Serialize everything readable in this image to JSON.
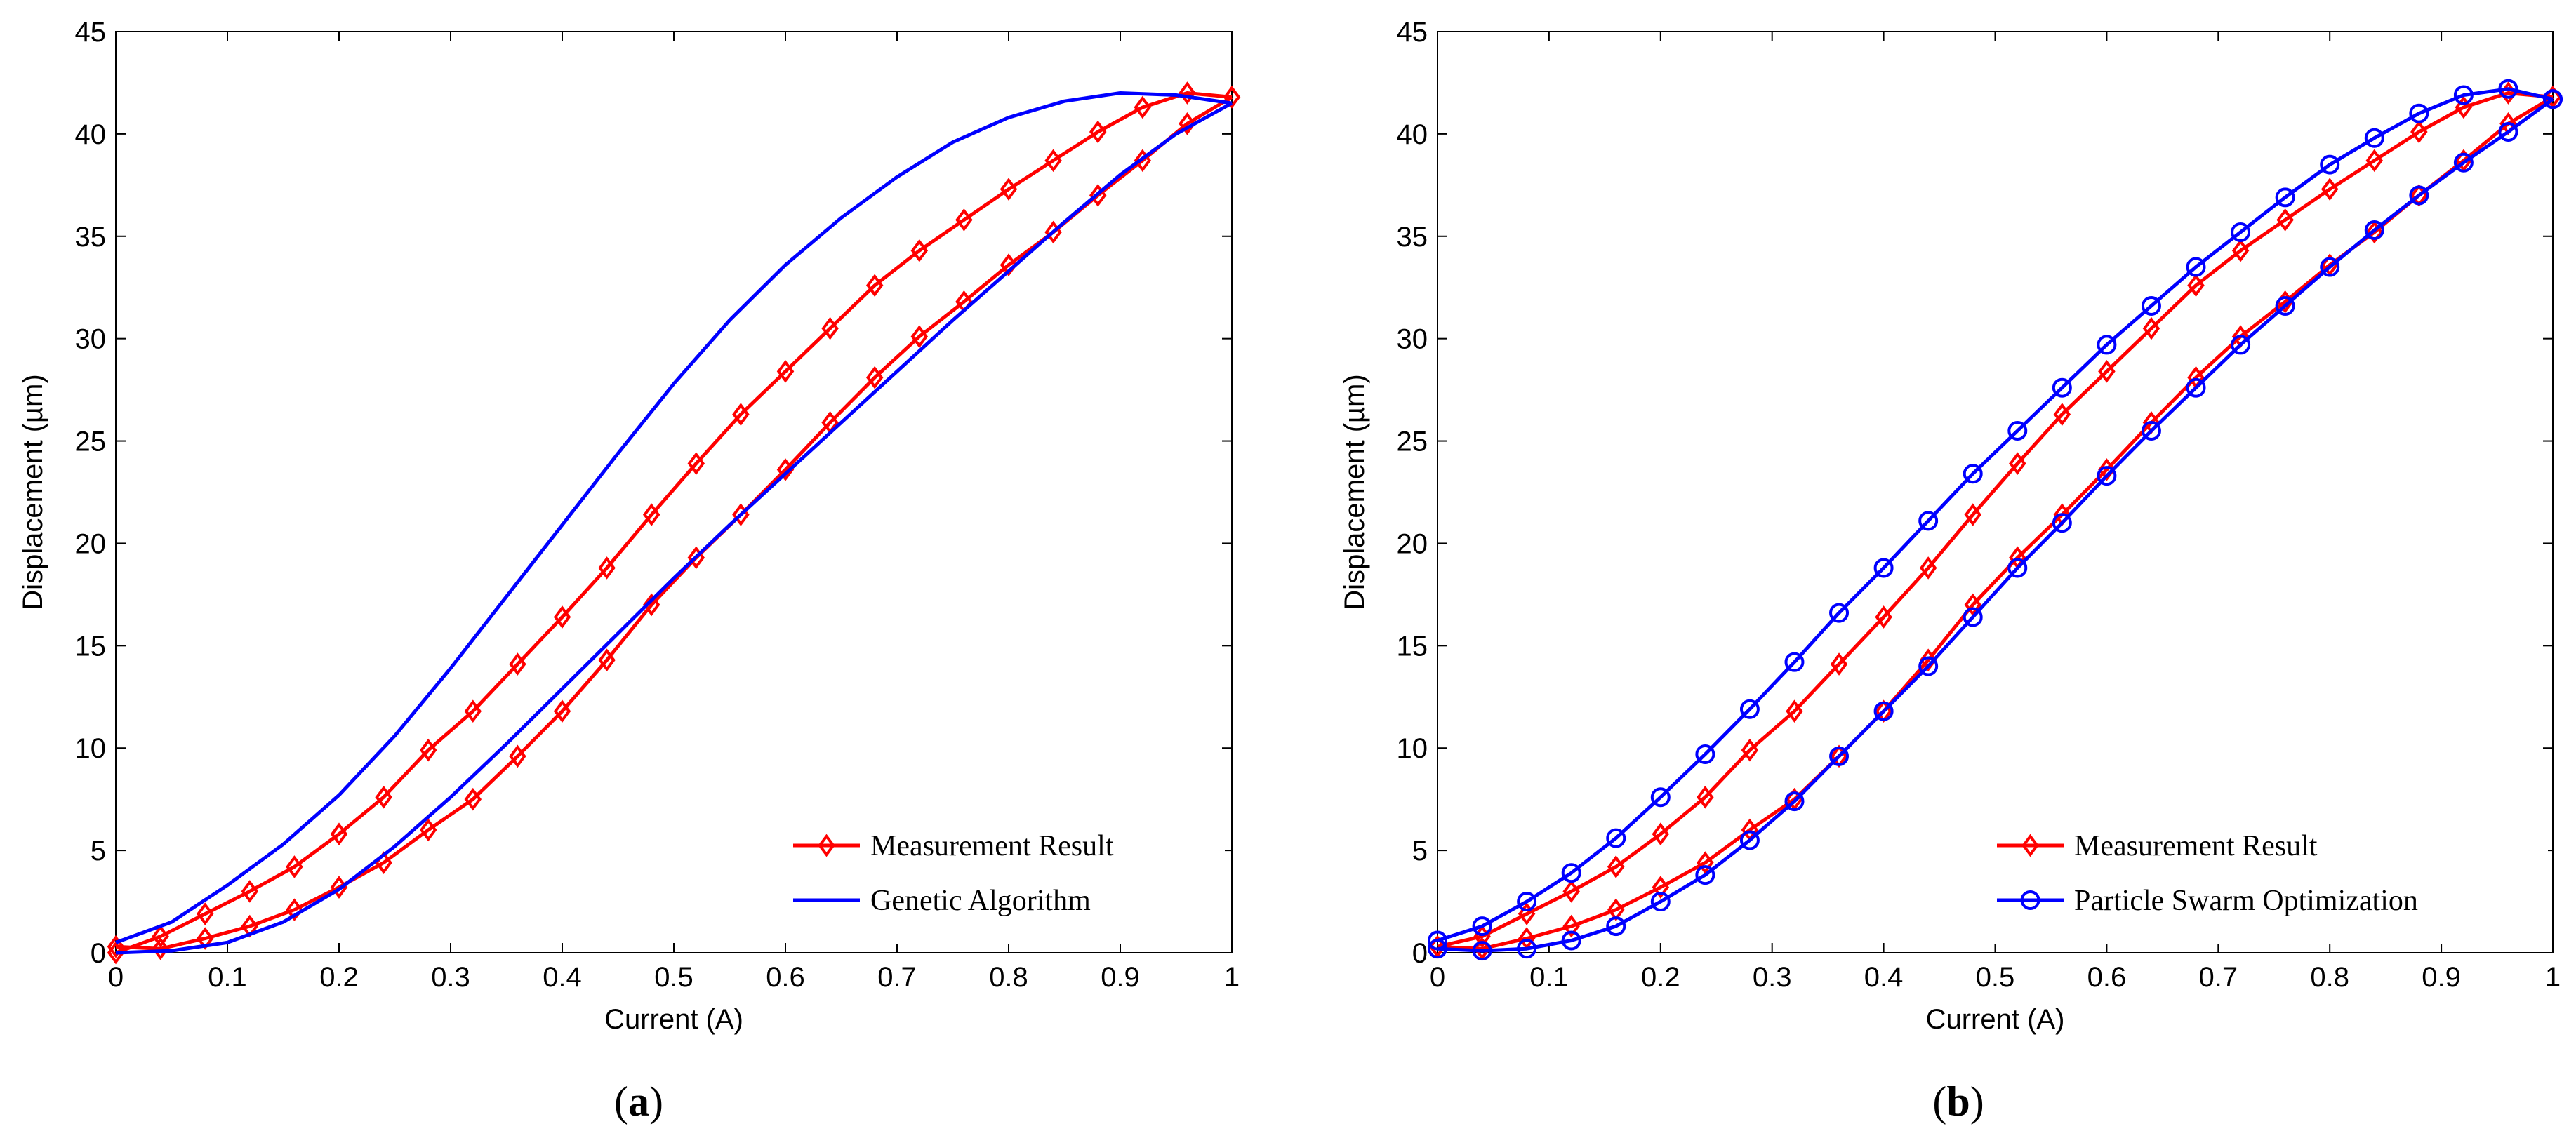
{
  "chart_data": [
    {
      "type": "line",
      "xlabel": "Current (A)",
      "ylabel": "Displacement (µm)",
      "xlim": [
        0,
        1
      ],
      "ylim": [
        0,
        45
      ],
      "xticks": [
        0,
        0.1,
        0.2,
        0.3,
        0.4,
        0.5,
        0.6,
        0.7,
        0.8,
        0.9,
        1
      ],
      "xtick_labels": [
        "0",
        "0.1",
        "0.2",
        "0.3",
        "0.4",
        "0.5",
        "0.6",
        "0.7",
        "0.8",
        "0.9",
        "1"
      ],
      "yticks": [
        0,
        5,
        10,
        15,
        20,
        25,
        30,
        35,
        40,
        45
      ],
      "ytick_labels": [
        "0",
        "5",
        "10",
        "15",
        "20",
        "25",
        "30",
        "35",
        "40",
        "45"
      ],
      "grid": false,
      "legend_position": "bottom-right",
      "panel_label": "a",
      "series": [
        {
          "name": "Measurement Result",
          "color": "#ff0000",
          "marker": "diamond",
          "up_x": [
            0,
            0.04,
            0.08,
            0.12,
            0.16,
            0.2,
            0.24,
            0.28,
            0.32,
            0.36,
            0.4,
            0.44,
            0.48,
            0.52,
            0.56,
            0.6,
            0.64,
            0.68,
            0.72,
            0.76,
            0.8,
            0.84,
            0.88,
            0.92,
            0.96,
            1
          ],
          "up_y": [
            0,
            0.8,
            1.9,
            3.0,
            4.2,
            5.8,
            7.6,
            9.9,
            11.8,
            14.1,
            16.4,
            18.8,
            21.4,
            23.9,
            26.3,
            28.4,
            30.5,
            32.6,
            34.3,
            35.8,
            37.3,
            38.7,
            40.1,
            41.3,
            42.0,
            41.8
          ],
          "down_x": [
            1,
            0.96,
            0.92,
            0.88,
            0.84,
            0.8,
            0.76,
            0.72,
            0.68,
            0.64,
            0.6,
            0.56,
            0.52,
            0.48,
            0.44,
            0.4,
            0.36,
            0.32,
            0.28,
            0.24,
            0.2,
            0.16,
            0.12,
            0.08,
            0.04,
            0
          ],
          "down_y": [
            41.8,
            40.5,
            38.7,
            37.0,
            35.2,
            33.6,
            31.8,
            30.1,
            28.1,
            25.9,
            23.6,
            21.4,
            19.3,
            17.0,
            14.3,
            11.8,
            9.6,
            7.5,
            6.0,
            4.4,
            3.2,
            2.1,
            1.3,
            0.7,
            0.2,
            0.3
          ]
        },
        {
          "name": "Genetic Algorithm",
          "color": "#0000ff",
          "marker": "none",
          "up_x": [
            0,
            0.05,
            0.1,
            0.15,
            0.2,
            0.25,
            0.3,
            0.35,
            0.4,
            0.45,
            0.5,
            0.55,
            0.6,
            0.65,
            0.7,
            0.75,
            0.8,
            0.85,
            0.9,
            0.95,
            1
          ],
          "up_y": [
            0.5,
            1.5,
            3.3,
            5.3,
            7.7,
            10.6,
            13.9,
            17.4,
            20.9,
            24.4,
            27.8,
            30.9,
            33.6,
            35.9,
            37.9,
            39.6,
            40.8,
            41.6,
            42.0,
            41.9,
            41.5
          ],
          "down_x": [
            1,
            0.95,
            0.9,
            0.85,
            0.8,
            0.75,
            0.7,
            0.65,
            0.6,
            0.55,
            0.5,
            0.45,
            0.4,
            0.35,
            0.3,
            0.25,
            0.2,
            0.15,
            0.1,
            0.05,
            0
          ],
          "down_y": [
            41.5,
            40.0,
            38.0,
            35.7,
            33.3,
            30.9,
            28.4,
            25.9,
            23.4,
            20.9,
            18.3,
            15.6,
            12.9,
            10.2,
            7.6,
            5.2,
            3.1,
            1.5,
            0.5,
            0.1,
            0.0
          ]
        }
      ]
    },
    {
      "type": "line",
      "xlabel": "Current (A)",
      "ylabel": "Displacement (µm)",
      "xlim": [
        0,
        1
      ],
      "ylim": [
        0,
        45
      ],
      "xticks": [
        0,
        0.1,
        0.2,
        0.3,
        0.4,
        0.5,
        0.6,
        0.7,
        0.8,
        0.9,
        1
      ],
      "xtick_labels": [
        "0",
        "0.1",
        "0.2",
        "0.3",
        "0.4",
        "0.5",
        "0.6",
        "0.7",
        "0.8",
        "0.9",
        "1"
      ],
      "yticks": [
        0,
        5,
        10,
        15,
        20,
        25,
        30,
        35,
        40,
        45
      ],
      "ytick_labels": [
        "0",
        "5",
        "10",
        "15",
        "20",
        "25",
        "30",
        "35",
        "40",
        "45"
      ],
      "grid": false,
      "legend_position": "bottom-right",
      "panel_label": "b",
      "series": [
        {
          "name": "Measurement Result",
          "color": "#ff0000",
          "marker": "diamond",
          "up_x": [
            0,
            0.04,
            0.08,
            0.12,
            0.16,
            0.2,
            0.24,
            0.28,
            0.32,
            0.36,
            0.4,
            0.44,
            0.48,
            0.52,
            0.56,
            0.6,
            0.64,
            0.68,
            0.72,
            0.76,
            0.8,
            0.84,
            0.88,
            0.92,
            0.96,
            1
          ],
          "up_y": [
            0.3,
            0.8,
            1.9,
            3.0,
            4.2,
            5.8,
            7.6,
            9.9,
            11.8,
            14.1,
            16.4,
            18.8,
            21.4,
            23.9,
            26.3,
            28.4,
            30.5,
            32.6,
            34.3,
            35.8,
            37.3,
            38.7,
            40.1,
            41.3,
            42.0,
            41.8
          ],
          "down_x": [
            1,
            0.96,
            0.92,
            0.88,
            0.84,
            0.8,
            0.76,
            0.72,
            0.68,
            0.64,
            0.6,
            0.56,
            0.52,
            0.48,
            0.44,
            0.4,
            0.36,
            0.32,
            0.28,
            0.24,
            0.2,
            0.16,
            0.12,
            0.08,
            0.04,
            0
          ],
          "down_y": [
            41.8,
            40.5,
            38.7,
            37.0,
            35.2,
            33.6,
            31.8,
            30.1,
            28.1,
            25.9,
            23.6,
            21.4,
            19.3,
            17.0,
            14.3,
            11.8,
            9.6,
            7.5,
            6.0,
            4.4,
            3.2,
            2.1,
            1.3,
            0.7,
            0.2,
            0.3
          ]
        },
        {
          "name": "Particle Swarm Optimization",
          "color": "#0000ff",
          "marker": "circle",
          "up_x": [
            0,
            0.04,
            0.08,
            0.12,
            0.16,
            0.2,
            0.24,
            0.28,
            0.32,
            0.36,
            0.4,
            0.44,
            0.48,
            0.52,
            0.56,
            0.6,
            0.64,
            0.68,
            0.72,
            0.76,
            0.8,
            0.84,
            0.88,
            0.92,
            0.96,
            1
          ],
          "up_y": [
            0.6,
            1.3,
            2.5,
            3.9,
            5.6,
            7.6,
            9.7,
            11.9,
            14.2,
            16.6,
            18.8,
            21.1,
            23.4,
            25.5,
            27.6,
            29.7,
            31.6,
            33.5,
            35.2,
            36.9,
            38.5,
            39.8,
            41.0,
            41.9,
            42.2,
            41.7
          ],
          "down_x": [
            1,
            0.96,
            0.92,
            0.88,
            0.84,
            0.8,
            0.76,
            0.72,
            0.68,
            0.64,
            0.6,
            0.56,
            0.52,
            0.48,
            0.44,
            0.4,
            0.36,
            0.32,
            0.28,
            0.24,
            0.2,
            0.16,
            0.12,
            0.08,
            0.04,
            0
          ],
          "down_y": [
            41.7,
            40.1,
            38.6,
            37.0,
            35.3,
            33.5,
            31.6,
            29.7,
            27.6,
            25.5,
            23.3,
            21.0,
            18.8,
            16.4,
            14.0,
            11.8,
            9.6,
            7.4,
            5.5,
            3.8,
            2.5,
            1.3,
            0.6,
            0.2,
            0.1,
            0.2
          ]
        }
      ]
    }
  ]
}
